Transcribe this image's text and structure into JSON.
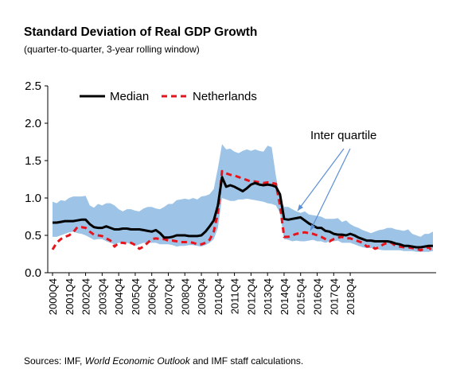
{
  "title": "Standard Deviation of Real GDP Growth",
  "subtitle": "(quarter-to-quarter, 3-year rolling window)",
  "source": {
    "prefix": "Sources: IMF, ",
    "italic": "World Economic Outlook",
    "suffix": " and IMF staff calculations."
  },
  "chart_data": {
    "type": "line",
    "title": "Standard Deviation of Real GDP Growth",
    "subtitle": "(quarter-to-quarter, 3-year rolling window)",
    "ylim": [
      0,
      2.5
    ],
    "yticks": [
      "0.0",
      "0.5",
      "1.0",
      "1.5",
      "2.0",
      "2.5"
    ],
    "xticks": [
      "2000Q4",
      "2001Q4",
      "2002Q4",
      "2003Q4",
      "2004Q4",
      "2005Q4",
      "2006Q4",
      "2007Q4",
      "2008Q4",
      "2009Q4",
      "2010Q4",
      "2011Q4",
      "2012Q4",
      "2013Q4",
      "2014Q4",
      "2015Q4",
      "2016Q4",
      "2017Q4",
      "2018Q4"
    ],
    "legend": {
      "position": "top-left",
      "entries": [
        "Median",
        "Netherlands"
      ]
    },
    "colors": {
      "median": "#000000",
      "netherlands": "#e8141c",
      "band": "#9dc3e6",
      "arrow": "#5b8fd6"
    },
    "annotation": "Inter quartile",
    "x_first": "2000Q4",
    "series": [
      {
        "name": "Median",
        "style": "solid",
        "values": [
          0.67,
          0.67,
          0.68,
          0.69,
          0.69,
          0.69,
          0.7,
          0.71,
          0.71,
          0.65,
          0.61,
          0.6,
          0.6,
          0.62,
          0.6,
          0.58,
          0.58,
          0.59,
          0.59,
          0.58,
          0.58,
          0.58,
          0.57,
          0.56,
          0.55,
          0.57,
          0.53,
          0.47,
          0.47,
          0.48,
          0.5,
          0.5,
          0.5,
          0.49,
          0.49,
          0.49,
          0.5,
          0.55,
          0.62,
          0.7,
          0.9,
          1.28,
          1.15,
          1.17,
          1.15,
          1.12,
          1.09,
          1.13,
          1.18,
          1.2,
          1.18,
          1.17,
          1.18,
          1.17,
          1.15,
          1.05,
          0.72,
          0.71,
          0.72,
          0.73,
          0.74,
          0.7,
          0.66,
          0.63,
          0.6,
          0.6,
          0.56,
          0.55,
          0.52,
          0.51,
          0.51,
          0.5,
          0.52,
          0.5,
          0.47,
          0.45,
          0.43,
          0.43,
          0.42,
          0.42,
          0.42,
          0.42,
          0.41,
          0.39,
          0.38,
          0.36,
          0.36,
          0.35,
          0.34,
          0.34,
          0.35,
          0.36,
          0.36
        ]
      },
      {
        "name": "Netherlands",
        "style": "dashed",
        "values": [
          0.31,
          0.4,
          0.45,
          0.48,
          0.5,
          0.54,
          0.61,
          0.61,
          0.6,
          0.55,
          0.51,
          0.5,
          0.49,
          0.46,
          0.43,
          0.35,
          0.4,
          0.4,
          0.39,
          0.4,
          0.37,
          0.32,
          0.35,
          0.4,
          0.45,
          0.46,
          0.45,
          0.45,
          0.43,
          0.43,
          0.42,
          0.41,
          0.41,
          0.41,
          0.4,
          0.38,
          0.38,
          0.4,
          0.44,
          0.55,
          0.8,
          1.36,
          1.33,
          1.31,
          1.3,
          1.28,
          1.26,
          1.24,
          1.22,
          1.22,
          1.21,
          1.2,
          1.21,
          1.2,
          1.19,
          0.9,
          0.48,
          0.48,
          0.5,
          0.52,
          0.53,
          0.54,
          0.53,
          0.52,
          0.5,
          0.48,
          0.45,
          0.42,
          0.45,
          0.47,
          0.48,
          0.46,
          0.46,
          0.44,
          0.42,
          0.4,
          0.35,
          0.36,
          0.32,
          0.34,
          0.38,
          0.4,
          0.4,
          0.36,
          0.35,
          0.34,
          0.34,
          0.33,
          0.32,
          0.3,
          0.32,
          0.34,
          0.28
        ]
      },
      {
        "name": "Inter quartile (upper)",
        "style": "band",
        "values": [
          0.95,
          0.93,
          0.97,
          0.96,
          1.0,
          1.02,
          1.02,
          1.02,
          1.03,
          0.9,
          0.87,
          0.92,
          0.9,
          0.93,
          0.93,
          0.9,
          0.85,
          0.82,
          0.85,
          0.85,
          0.83,
          0.82,
          0.86,
          0.88,
          0.88,
          0.86,
          0.85,
          0.88,
          0.92,
          0.92,
          0.97,
          0.98,
          0.99,
          0.98,
          1.0,
          0.98,
          1.02,
          1.03,
          1.05,
          1.12,
          1.4,
          1.72,
          1.65,
          1.66,
          1.62,
          1.6,
          1.63,
          1.65,
          1.63,
          1.65,
          1.63,
          1.62,
          1.7,
          1.68,
          1.3,
          1.0,
          0.88,
          0.88,
          0.85,
          0.82,
          0.8,
          0.82,
          0.78,
          0.77,
          0.76,
          0.75,
          0.72,
          0.72,
          0.72,
          0.73,
          0.68,
          0.7,
          0.65,
          0.62,
          0.6,
          0.57,
          0.55,
          0.53,
          0.55,
          0.57,
          0.58,
          0.6,
          0.6,
          0.58,
          0.57,
          0.56,
          0.58,
          0.52,
          0.5,
          0.48,
          0.52,
          0.52,
          0.55
        ]
      },
      {
        "name": "Inter quartile (lower)",
        "style": "band",
        "values": [
          0.48,
          0.48,
          0.5,
          0.52,
          0.54,
          0.55,
          0.53,
          0.52,
          0.5,
          0.47,
          0.44,
          0.45,
          0.45,
          0.42,
          0.4,
          0.38,
          0.4,
          0.4,
          0.4,
          0.38,
          0.36,
          0.38,
          0.4,
          0.4,
          0.4,
          0.4,
          0.38,
          0.38,
          0.38,
          0.37,
          0.35,
          0.36,
          0.36,
          0.37,
          0.37,
          0.36,
          0.35,
          0.37,
          0.4,
          0.45,
          0.6,
          1.0,
          0.98,
          0.96,
          0.96,
          0.98,
          0.98,
          0.99,
          0.98,
          0.97,
          0.96,
          0.95,
          0.93,
          0.92,
          0.9,
          0.8,
          0.45,
          0.44,
          0.42,
          0.43,
          0.42,
          0.42,
          0.43,
          0.44,
          0.42,
          0.42,
          0.4,
          0.42,
          0.42,
          0.43,
          0.4,
          0.4,
          0.4,
          0.38,
          0.36,
          0.34,
          0.33,
          0.33,
          0.32,
          0.31,
          0.3,
          0.3,
          0.3,
          0.3,
          0.3,
          0.29,
          0.29,
          0.29,
          0.28,
          0.28,
          0.28,
          0.28,
          0.29
        ]
      }
    ]
  }
}
